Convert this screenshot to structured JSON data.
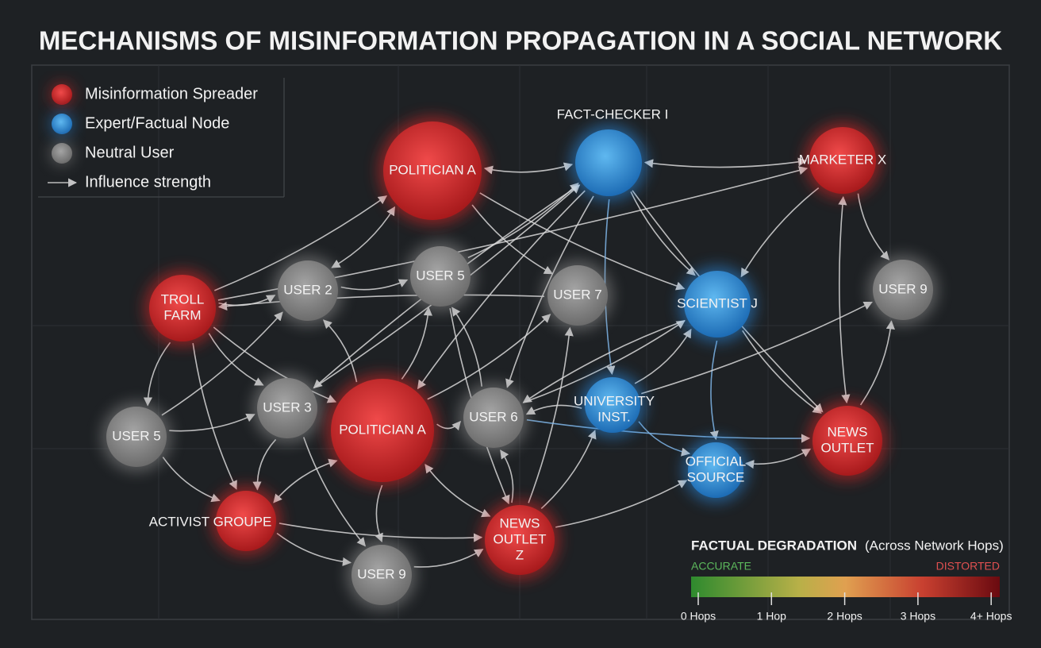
{
  "header": {
    "title": "MECHANISMS OF MISINFORMATION PROPAGATION IN A SOCIAL NETWORK"
  },
  "legend": {
    "items": [
      {
        "kind": "spreader",
        "label": "Misinformation Spreader"
      },
      {
        "kind": "expert",
        "label": "Expert/Factual Node"
      },
      {
        "kind": "neutral",
        "label": "Neutral User"
      },
      {
        "kind": "arrow",
        "label": "Influence strength"
      }
    ]
  },
  "nodes": [
    {
      "kind": "spreader",
      "label": [
        "POLITICIAN A"
      ]
    },
    {
      "kind": "expert",
      "label": [
        "FACT-CHECKER I"
      ]
    },
    {
      "kind": "spreader",
      "label": [
        "MARKETER X"
      ]
    },
    {
      "kind": "spreader",
      "label": [
        "TROLL",
        "FARM"
      ]
    },
    {
      "kind": "neutral",
      "label": [
        "USER 2"
      ]
    },
    {
      "kind": "neutral",
      "label": [
        "USER 5"
      ]
    },
    {
      "kind": "neutral",
      "label": [
        "USER 7"
      ]
    },
    {
      "kind": "expert",
      "label": [
        "SCIENTIST J"
      ]
    },
    {
      "kind": "neutral",
      "label": [
        "USER 9"
      ]
    },
    {
      "kind": "neutral",
      "label": [
        "USER 5"
      ]
    },
    {
      "kind": "neutral",
      "label": [
        "USER 3"
      ]
    },
    {
      "kind": "spreader",
      "label": [
        "POLITICIAN A"
      ]
    },
    {
      "kind": "neutral",
      "label": [
        "USER 6"
      ]
    },
    {
      "kind": "expert",
      "label": [
        "UNIVERSITY",
        "INST."
      ]
    },
    {
      "kind": "expert",
      "label": [
        "OFFICIAL",
        "SOURCE"
      ]
    },
    {
      "kind": "spreader",
      "label": [
        "NEWS",
        "OUTLET"
      ]
    },
    {
      "kind": "spreader",
      "label": [
        "ACTIVIST GROUPE"
      ]
    },
    {
      "kind": "spreader",
      "label": [
        "NEWS",
        "OUTLET",
        "Z"
      ]
    },
    {
      "kind": "neutral",
      "label": [
        "USER 9"
      ]
    }
  ],
  "scale": {
    "title": "FACTUAL DEGRADATION",
    "subtitle": "(Across Network Hops)",
    "low": "ACCURATE",
    "high": "DISTORTED",
    "ticks": [
      "0 Hops",
      "1 Hop",
      "2 Hops",
      "3 Hops",
      "4+ Hops"
    ]
  }
}
